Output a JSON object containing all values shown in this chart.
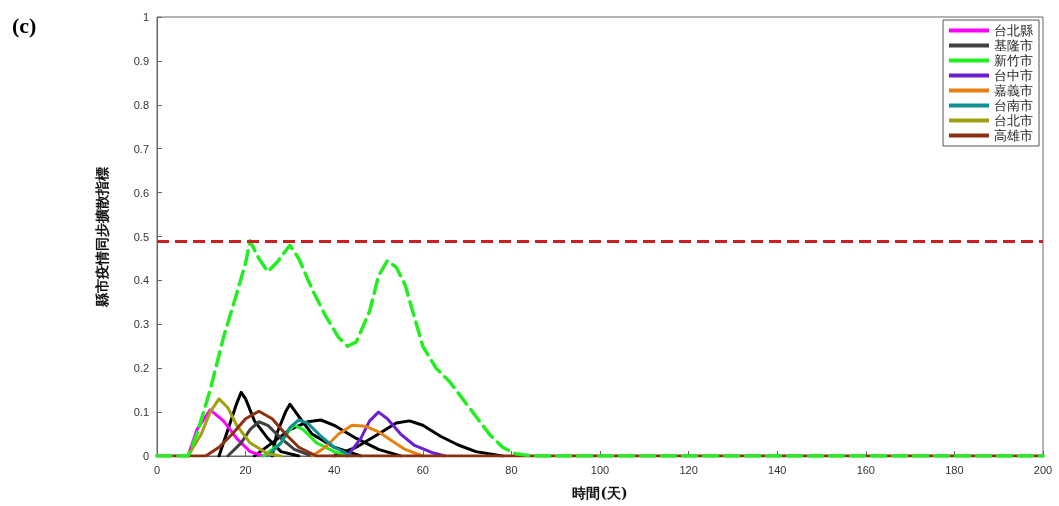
{
  "chart_data": {
    "type": "line",
    "annotations": [
      "(c)"
    ],
    "xlabel": "時間(天)",
    "ylabel": "縣市疫情同步擴散指標",
    "xlim": [
      0,
      200
    ],
    "xticks": [
      0,
      20,
      40,
      60,
      80,
      100,
      120,
      140,
      160,
      180,
      200
    ],
    "ylim": [
      0,
      1
    ],
    "yticks": [
      0,
      0.1,
      0.2,
      0.3,
      0.4,
      0.5,
      0.6,
      0.7,
      0.8,
      0.9,
      1
    ],
    "grid": false,
    "legend": "top right",
    "marker": "none",
    "line_style": "solid",
    "ref_lines": [
      {
        "axis": "y",
        "value": 0.49,
        "color": "#cc1f1f",
        "line_style": "dashed"
      }
    ],
    "series": [
      {
        "color": "#000000",
        "x": [
          14,
          16,
          18,
          19,
          20,
          22,
          25,
          28,
          32
        ],
        "values": [
          0,
          0.06,
          0.12,
          0.145,
          0.13,
          0.08,
          0.04,
          0.01,
          0
        ]
      },
      {
        "color": "#000000",
        "x": [
          26,
          27,
          29,
          30,
          32,
          35,
          40,
          46
        ],
        "values": [
          0,
          0.05,
          0.1,
          0.118,
          0.09,
          0.05,
          0.02,
          0
        ]
      },
      {
        "color": "#000000",
        "x": [
          22,
          26,
          30,
          34,
          37,
          40,
          45,
          50,
          55
        ],
        "values": [
          0,
          0.03,
          0.06,
          0.078,
          0.082,
          0.07,
          0.04,
          0.015,
          0
        ]
      },
      {
        "color": "#000000",
        "x": [
          40,
          45,
          50,
          54,
          57,
          60,
          64,
          68,
          72,
          78
        ],
        "values": [
          0,
          0.02,
          0.05,
          0.075,
          0.08,
          0.07,
          0.045,
          0.025,
          0.01,
          0
        ]
      },
      {
        "name": "台北縣",
        "color": "#ff00ff",
        "x": [
          7,
          9,
          12,
          15,
          18,
          21,
          24
        ],
        "values": [
          0,
          0.06,
          0.105,
          0.08,
          0.04,
          0.01,
          0
        ]
      },
      {
        "name": "基隆市",
        "color": "#404040",
        "x": [
          16,
          19,
          21,
          23,
          25,
          28,
          31,
          35
        ],
        "values": [
          0,
          0.03,
          0.06,
          0.078,
          0.07,
          0.04,
          0.015,
          0
        ]
      },
      {
        "name": "新竹市",
        "color": "#22ee22",
        "x": [
          24,
          28,
          30,
          31,
          33,
          36,
          40,
          43
        ],
        "values": [
          0,
          0.03,
          0.06,
          0.07,
          0.06,
          0.03,
          0.01,
          0
        ]
      },
      {
        "name": "台中市",
        "color": "#6a1fd0",
        "x": [
          43,
          46,
          48,
          50,
          52,
          55,
          58,
          62,
          65
        ],
        "values": [
          0,
          0.04,
          0.08,
          0.1,
          0.085,
          0.05,
          0.025,
          0.008,
          0
        ]
      },
      {
        "name": "嘉義市",
        "color": "#e88010",
        "x": [
          35,
          38,
          41,
          44,
          47,
          50,
          53,
          56,
          60
        ],
        "values": [
          0,
          0.02,
          0.05,
          0.07,
          0.068,
          0.055,
          0.035,
          0.015,
          0
        ]
      },
      {
        "name": "台南市",
        "color": "#109090",
        "x": [
          25,
          28,
          30,
          32,
          34,
          37,
          40,
          44
        ],
        "values": [
          0,
          0.03,
          0.065,
          0.082,
          0.075,
          0.045,
          0.02,
          0
        ]
      },
      {
        "name": "台北市",
        "color": "#a0a010",
        "x": [
          7,
          10,
          12,
          14,
          16,
          18,
          21,
          25,
          28
        ],
        "values": [
          0,
          0.05,
          0.1,
          0.13,
          0.11,
          0.07,
          0.03,
          0.005,
          0
        ]
      },
      {
        "name": "高雄市",
        "color": "#8b3010",
        "x": [
          0,
          11,
          14,
          17,
          20,
          23,
          26,
          29,
          32,
          36,
          200
        ],
        "values": [
          0,
          0,
          0.02,
          0.05,
          0.085,
          0.102,
          0.085,
          0.05,
          0.02,
          0,
          0
        ]
      },
      {
        "color": "#22ee22",
        "line_style": "dashed",
        "x": [
          0,
          7,
          9,
          12,
          15,
          18,
          20,
          21,
          23,
          25,
          27,
          30,
          32,
          35,
          38,
          41,
          43,
          45,
          48,
          50,
          52,
          54,
          56,
          58,
          60,
          63,
          66,
          69,
          72,
          75,
          78,
          81,
          85,
          200
        ],
        "values": [
          0,
          0,
          0.05,
          0.15,
          0.27,
          0.37,
          0.44,
          0.49,
          0.45,
          0.42,
          0.44,
          0.48,
          0.45,
          0.38,
          0.32,
          0.27,
          0.25,
          0.26,
          0.33,
          0.41,
          0.445,
          0.43,
          0.39,
          0.32,
          0.25,
          0.2,
          0.17,
          0.13,
          0.09,
          0.05,
          0.02,
          0.005,
          0,
          0
        ]
      }
    ]
  }
}
